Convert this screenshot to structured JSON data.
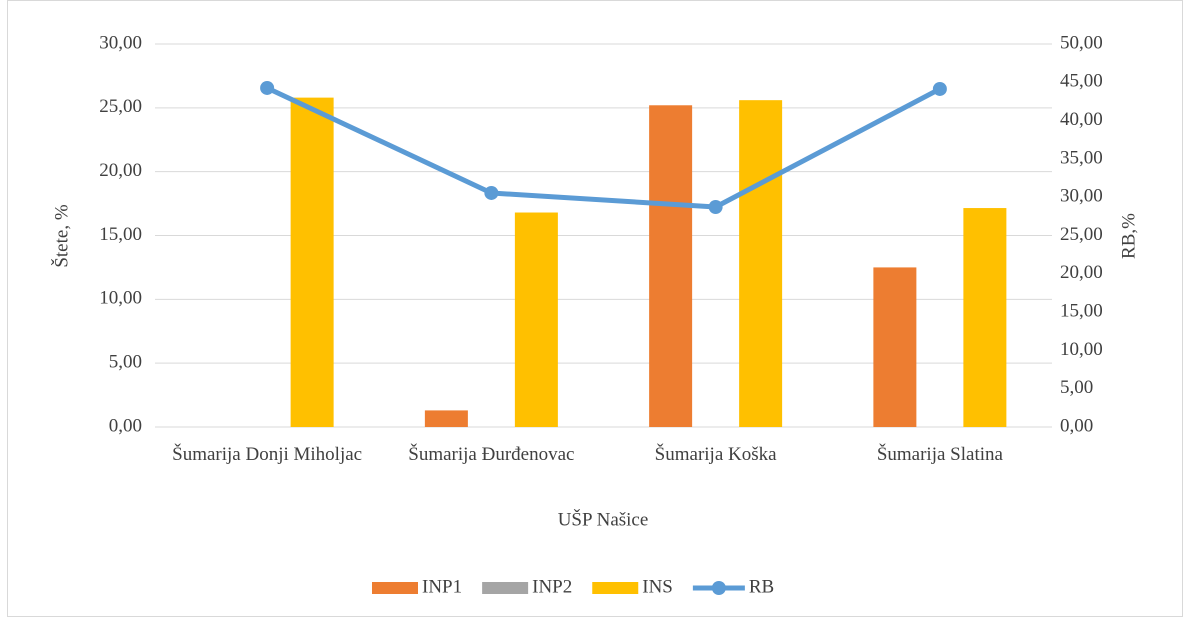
{
  "chart_data": {
    "type": "bar_line",
    "x_label": "UŠP Našice",
    "y_label": "Štete, %",
    "y2_label": "RB,%",
    "categories": [
      "Šumarija Donji Miholjac",
      "Šumarija Đurđenovac",
      "Šumarija Koška",
      "Šumarija Slatina"
    ],
    "series": [
      {
        "name": "INP1",
        "color": "#ed7d31",
        "type": "bar",
        "values": [
          0,
          1.3,
          25.2,
          12.5
        ]
      },
      {
        "name": "INP2",
        "color": "#a5a5a5",
        "type": "bar",
        "values": [
          0,
          0,
          0,
          0
        ]
      },
      {
        "name": "INS",
        "color": "#ffc000",
        "type": "bar",
        "values": [
          25.8,
          16.8,
          25.6,
          17.15
        ]
      },
      {
        "name": "RB",
        "color": "#5b9bd5",
        "type": "line",
        "axis": "y2",
        "values": [
          44.26,
          30.55,
          28.72,
          44.13
        ]
      }
    ],
    "ylim": [
      0,
      30
    ],
    "yticks": [
      {
        "value": 0,
        "label": "0,00"
      },
      {
        "value": 5,
        "label": "5,00"
      },
      {
        "value": 10,
        "label": "10,00"
      },
      {
        "value": 15,
        "label": "15,00"
      },
      {
        "value": 20,
        "label": "20,00"
      },
      {
        "value": 25,
        "label": "25,00"
      },
      {
        "value": 30,
        "label": "30,00"
      }
    ],
    "y2lim": [
      0,
      50
    ],
    "y2ticks": [
      {
        "value": 0,
        "label": "0,00"
      },
      {
        "value": 5,
        "label": "5,00"
      },
      {
        "value": 10,
        "label": "10,00"
      },
      {
        "value": 15,
        "label": "15,00"
      },
      {
        "value": 20,
        "label": "20,00"
      },
      {
        "value": 25,
        "label": "25,00"
      },
      {
        "value": 30,
        "label": "30,00"
      },
      {
        "value": 35,
        "label": "35,00"
      },
      {
        "value": 40,
        "label": "40,00"
      },
      {
        "value": 45,
        "label": "45,00"
      },
      {
        "value": 50,
        "label": "50,00"
      }
    ],
    "grid": true,
    "legend": "bottom"
  }
}
